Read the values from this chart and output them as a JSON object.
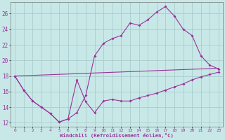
{
  "xlabel": "Windchill (Refroidissement éolien,°C)",
  "xlim": [
    -0.5,
    23.5
  ],
  "ylim": [
    11.5,
    27.5
  ],
  "xticks": [
    0,
    1,
    2,
    3,
    4,
    5,
    6,
    7,
    8,
    9,
    10,
    11,
    12,
    13,
    14,
    15,
    16,
    17,
    18,
    19,
    20,
    21,
    22,
    23
  ],
  "yticks": [
    12,
    14,
    16,
    18,
    20,
    22,
    24,
    26
  ],
  "bg_color": "#c8e8e8",
  "grid_color": "#a8cccc",
  "line_color": "#993399",
  "line1_x": [
    0,
    1,
    2,
    3,
    4,
    5,
    6,
    7,
    8,
    9,
    10,
    11,
    12,
    13,
    14,
    15,
    16,
    17,
    18,
    19,
    20,
    21,
    22,
    23
  ],
  "line1_y": [
    18.0,
    16.2,
    14.8,
    14.0,
    13.2,
    12.1,
    12.5,
    17.5,
    14.7,
    13.3,
    14.8,
    15.0,
    14.8,
    14.8,
    15.2,
    15.5,
    15.8,
    16.2,
    16.6,
    17.0,
    17.5,
    17.9,
    18.2,
    18.5
  ],
  "line2_x": [
    0,
    1,
    2,
    3,
    4,
    5,
    6,
    7,
    8,
    9,
    10,
    11,
    12,
    13,
    14,
    15,
    16,
    17,
    18,
    19,
    20,
    21,
    22,
    23
  ],
  "line2_y": [
    18.0,
    16.2,
    14.8,
    14.0,
    13.2,
    12.1,
    12.5,
    13.3,
    15.5,
    20.6,
    22.2,
    22.8,
    23.2,
    24.8,
    24.5,
    25.2,
    26.2,
    26.9,
    25.7,
    24.0,
    23.2,
    20.6,
    19.4,
    18.9
  ],
  "line3_x": [
    0,
    23
  ],
  "line3_y": [
    18.0,
    19.0
  ]
}
